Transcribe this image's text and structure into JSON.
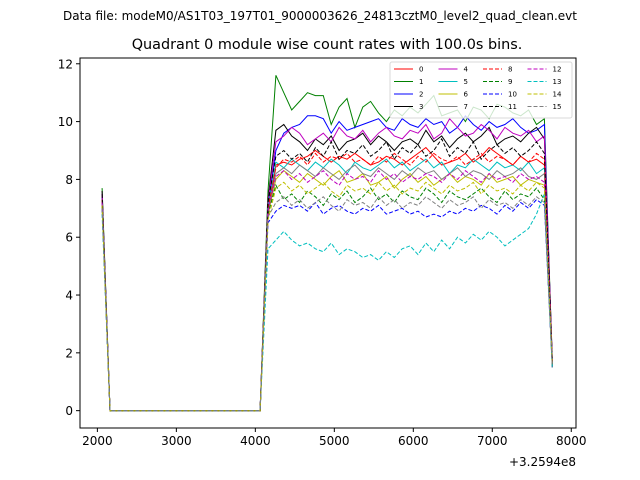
{
  "chart_data": {
    "type": "line",
    "suptitle": "Data file: modeM0/AS1T03_197T01_9000003626_24813cztM0_level2_quad_clean.evt",
    "title": "Quadrant 0 module wise count rates with 100.0s bins.",
    "xlabel": "",
    "ylabel": "",
    "x_offset_label": "+3.2594e8",
    "xlim": [
      1780,
      8060
    ],
    "ylim": [
      -0.6,
      12.2
    ],
    "x_ticks": [
      2000,
      3000,
      4000,
      5000,
      6000,
      7000,
      8000
    ],
    "y_ticks": [
      0,
      2,
      4,
      6,
      8,
      10,
      12
    ],
    "x_tick_labels": [
      "2000",
      "3000",
      "4000",
      "5000",
      "6000",
      "7000",
      "8000"
    ],
    "y_tick_labels": [
      "0",
      "2",
      "4",
      "6",
      "8",
      "10",
      "12"
    ],
    "grid": false,
    "legend_position": "top-right",
    "x": [
      2060,
      2160,
      2260,
      2360,
      2460,
      2560,
      2660,
      2760,
      2860,
      2960,
      3060,
      3160,
      3260,
      3360,
      3460,
      3560,
      3660,
      3760,
      3860,
      3960,
      4060,
      4160,
      4260,
      4360,
      4460,
      4560,
      4660,
      4760,
      4860,
      4960,
      5060,
      5160,
      5260,
      5360,
      5460,
      5560,
      5660,
      5760,
      5860,
      5960,
      6060,
      6160,
      6260,
      6360,
      6460,
      6560,
      6660,
      6760,
      6860,
      6960,
      7060,
      7160,
      7260,
      7360,
      7460,
      7560,
      7660,
      7760
    ],
    "series": [
      {
        "name": "0",
        "color": "#ff0000",
        "dash": "solid",
        "values": [
          7.2,
          0.0,
          0.0,
          0.0,
          0.0,
          0.0,
          0.0,
          0.0,
          0.0,
          0.0,
          0.0,
          0.0,
          0.0,
          0.0,
          0.0,
          0.0,
          0.0,
          0.0,
          0.0,
          0.0,
          0.0,
          6.7,
          8.5,
          8.6,
          8.5,
          8.7,
          8.8,
          9.0,
          8.8,
          8.6,
          8.8,
          8.7,
          8.9,
          8.7,
          8.5,
          8.6,
          8.8,
          8.7,
          8.5,
          8.7,
          8.9,
          9.1,
          8.8,
          8.5,
          8.6,
          8.7,
          8.9,
          8.6,
          8.8,
          9.1,
          8.9,
          8.7,
          8.5,
          8.8,
          8.6,
          8.7,
          8.5,
          1.7
        ]
      },
      {
        "name": "1",
        "color": "#008000",
        "dash": "solid",
        "values": [
          7.7,
          0.0,
          0.0,
          0.0,
          0.0,
          0.0,
          0.0,
          0.0,
          0.0,
          0.0,
          0.0,
          0.0,
          0.0,
          0.0,
          0.0,
          0.0,
          0.0,
          0.0,
          0.0,
          0.0,
          0.0,
          7.6,
          11.6,
          11.0,
          10.4,
          10.7,
          11.0,
          10.9,
          10.9,
          9.9,
          10.5,
          10.8,
          9.8,
          10.5,
          10.7,
          10.3,
          10.0,
          10.4,
          10.2,
          10.5,
          10.3,
          10.6,
          10.9,
          10.2,
          10.3,
          10.4,
          10.0,
          10.5,
          10.4,
          10.1,
          10.6,
          10.5,
          10.3,
          10.2,
          10.4,
          9.9,
          10.1,
          1.6
        ]
      },
      {
        "name": "2",
        "color": "#0000ff",
        "dash": "solid",
        "values": [
          7.4,
          0.0,
          0.0,
          0.0,
          0.0,
          0.0,
          0.0,
          0.0,
          0.0,
          0.0,
          0.0,
          0.0,
          0.0,
          0.0,
          0.0,
          0.0,
          0.0,
          0.0,
          0.0,
          0.0,
          0.0,
          7.1,
          9.0,
          9.6,
          9.8,
          9.9,
          10.2,
          10.2,
          10.1,
          9.6,
          10.0,
          9.7,
          9.8,
          9.9,
          10.0,
          10.1,
          9.8,
          9.7,
          10.1,
          9.9,
          9.8,
          10.1,
          9.9,
          10.0,
          9.6,
          9.8,
          10.2,
          9.9,
          9.7,
          10.0,
          9.8,
          9.9,
          10.1,
          9.8,
          9.6,
          9.7,
          9.9,
          1.5
        ]
      },
      {
        "name": "3",
        "color": "#000000",
        "dash": "solid",
        "values": [
          7.6,
          0.0,
          0.0,
          0.0,
          0.0,
          0.0,
          0.0,
          0.0,
          0.0,
          0.0,
          0.0,
          0.0,
          0.0,
          0.0,
          0.0,
          0.0,
          0.0,
          0.0,
          0.0,
          0.0,
          0.0,
          7.3,
          9.7,
          9.9,
          9.5,
          9.3,
          9.0,
          9.4,
          9.2,
          9.5,
          9.0,
          9.3,
          9.4,
          9.6,
          9.2,
          9.5,
          9.3,
          9.0,
          9.3,
          9.4,
          9.2,
          9.7,
          9.3,
          9.5,
          9.1,
          9.4,
          9.6,
          9.3,
          9.5,
          9.8,
          9.2,
          9.4,
          9.5,
          9.3,
          9.6,
          9.8,
          9.4,
          1.8
        ]
      },
      {
        "name": "4",
        "color": "#bf00bf",
        "dash": "solid",
        "values": [
          7.5,
          0.0,
          0.0,
          0.0,
          0.0,
          0.0,
          0.0,
          0.0,
          0.0,
          0.0,
          0.0,
          0.0,
          0.0,
          0.0,
          0.0,
          0.0,
          0.0,
          0.0,
          0.0,
          0.0,
          0.0,
          7.2,
          9.3,
          9.5,
          9.8,
          9.6,
          9.2,
          9.4,
          9.6,
          9.3,
          9.8,
          9.5,
          9.4,
          9.7,
          9.3,
          9.6,
          9.8,
          9.5,
          9.4,
          9.7,
          9.6,
          9.9,
          9.4,
          9.6,
          10.1,
          9.8,
          9.5,
          9.6,
          9.9,
          9.7,
          9.4,
          9.8,
          9.6,
          9.5,
          9.7,
          9.3,
          9.5,
          1.7
        ]
      },
      {
        "name": "5",
        "color": "#00bfbf",
        "dash": "solid",
        "values": [
          7.3,
          0.0,
          0.0,
          0.0,
          0.0,
          0.0,
          0.0,
          0.0,
          0.0,
          0.0,
          0.0,
          0.0,
          0.0,
          0.0,
          0.0,
          0.0,
          0.0,
          0.0,
          0.0,
          0.0,
          0.0,
          7.0,
          8.6,
          8.4,
          8.7,
          8.5,
          8.3,
          8.6,
          8.4,
          8.7,
          8.5,
          8.2,
          8.6,
          8.4,
          8.3,
          8.5,
          8.7,
          8.4,
          8.6,
          8.3,
          8.5,
          8.7,
          8.4,
          8.6,
          8.2,
          8.5,
          8.4,
          8.7,
          8.5,
          8.3,
          8.6,
          8.4,
          8.5,
          8.3,
          8.6,
          8.2,
          8.4,
          1.6
        ]
      },
      {
        "name": "6",
        "color": "#bfbf00",
        "dash": "solid",
        "values": [
          7.1,
          0.0,
          0.0,
          0.0,
          0.0,
          0.0,
          0.0,
          0.0,
          0.0,
          0.0,
          0.0,
          0.0,
          0.0,
          0.0,
          0.0,
          0.0,
          0.0,
          0.0,
          0.0,
          0.0,
          0.0,
          6.8,
          8.0,
          8.3,
          8.1,
          7.9,
          8.2,
          8.0,
          7.8,
          8.1,
          8.3,
          7.9,
          8.0,
          8.2,
          7.8,
          7.9,
          8.1,
          7.7,
          8.0,
          8.2,
          7.9,
          8.1,
          7.8,
          8.0,
          8.2,
          7.9,
          8.1,
          8.0,
          7.8,
          8.2,
          7.9,
          8.0,
          8.1,
          7.8,
          8.0,
          7.9,
          7.8,
          1.5
        ]
      },
      {
        "name": "7",
        "color": "#808080",
        "dash": "solid",
        "values": [
          7.2,
          0.0,
          0.0,
          0.0,
          0.0,
          0.0,
          0.0,
          0.0,
          0.0,
          0.0,
          0.0,
          0.0,
          0.0,
          0.0,
          0.0,
          0.0,
          0.0,
          0.0,
          0.0,
          0.0,
          0.0,
          6.9,
          8.2,
          8.4,
          8.2,
          8.5,
          8.3,
          8.1,
          8.4,
          8.2,
          8.0,
          8.3,
          8.5,
          8.2,
          8.1,
          8.4,
          8.2,
          8.0,
          8.3,
          8.1,
          8.4,
          8.2,
          8.3,
          8.0,
          8.2,
          8.4,
          8.1,
          8.3,
          8.2,
          8.0,
          8.3,
          8.1,
          8.2,
          8.4,
          8.1,
          8.0,
          8.2,
          1.6
        ]
      },
      {
        "name": "8",
        "color": "#ff0000",
        "dash": "dashed",
        "values": [
          7.3,
          0.0,
          0.0,
          0.0,
          0.0,
          0.0,
          0.0,
          0.0,
          0.0,
          0.0,
          0.0,
          0.0,
          0.0,
          0.0,
          0.0,
          0.0,
          0.0,
          0.0,
          0.0,
          0.0,
          0.0,
          7.0,
          8.4,
          8.7,
          8.6,
          8.8,
          8.5,
          8.9,
          8.6,
          8.8,
          8.7,
          8.9,
          8.6,
          8.7,
          8.5,
          8.8,
          8.6,
          8.9,
          8.7,
          8.5,
          8.8,
          8.6,
          8.9,
          8.7,
          8.6,
          8.8,
          8.5,
          8.7,
          8.9,
          8.6,
          8.8,
          8.7,
          8.5,
          8.8,
          8.6,
          8.9,
          8.7,
          1.7
        ]
      },
      {
        "name": "9",
        "color": "#008000",
        "dash": "dashed",
        "values": [
          7.1,
          0.0,
          0.0,
          0.0,
          0.0,
          0.0,
          0.0,
          0.0,
          0.0,
          0.0,
          0.0,
          0.0,
          0.0,
          0.0,
          0.0,
          0.0,
          0.0,
          0.0,
          0.0,
          0.0,
          0.0,
          6.8,
          7.8,
          7.3,
          7.5,
          7.2,
          7.6,
          7.4,
          7.1,
          7.5,
          7.3,
          7.6,
          7.2,
          7.4,
          7.7,
          7.3,
          7.5,
          7.2,
          7.6,
          7.4,
          7.3,
          7.7,
          7.5,
          7.2,
          7.6,
          7.4,
          7.3,
          7.5,
          7.7,
          7.4,
          7.2,
          7.6,
          7.3,
          7.5,
          7.4,
          7.7,
          7.3,
          1.5
        ]
      },
      {
        "name": "10",
        "color": "#0000ff",
        "dash": "dashed",
        "values": [
          7.0,
          0.0,
          0.0,
          0.0,
          0.0,
          0.0,
          0.0,
          0.0,
          0.0,
          0.0,
          0.0,
          0.0,
          0.0,
          0.0,
          0.0,
          0.0,
          0.0,
          0.0,
          0.0,
          0.0,
          0.0,
          6.5,
          6.9,
          7.1,
          7.0,
          7.1,
          6.9,
          7.2,
          6.8,
          7.0,
          7.1,
          6.9,
          6.8,
          7.0,
          6.9,
          7.1,
          6.8,
          6.9,
          7.0,
          6.8,
          6.9,
          6.7,
          6.8,
          6.7,
          6.9,
          6.8,
          7.0,
          6.9,
          7.1,
          7.0,
          6.8,
          7.1,
          6.9,
          7.2,
          7.0,
          7.3,
          7.1,
          1.5
        ]
      },
      {
        "name": "11",
        "color": "#000000",
        "dash": "dashed",
        "values": [
          7.5,
          0.0,
          0.0,
          0.0,
          0.0,
          0.0,
          0.0,
          0.0,
          0.0,
          0.0,
          0.0,
          0.0,
          0.0,
          0.0,
          0.0,
          0.0,
          0.0,
          0.0,
          0.0,
          0.0,
          0.0,
          7.2,
          8.8,
          9.0,
          8.7,
          8.9,
          8.6,
          9.1,
          8.8,
          9.3,
          8.7,
          9.0,
          8.9,
          9.2,
          8.8,
          9.0,
          9.3,
          8.7,
          9.1,
          8.9,
          9.2,
          8.8,
          9.0,
          9.4,
          8.8,
          9.1,
          8.9,
          9.3,
          8.7,
          9.0,
          9.2,
          8.9,
          9.1,
          8.8,
          9.0,
          9.3,
          8.9,
          1.7
        ]
      },
      {
        "name": "12",
        "color": "#bf00bf",
        "dash": "dashed",
        "values": [
          7.2,
          0.0,
          0.0,
          0.0,
          0.0,
          0.0,
          0.0,
          0.0,
          0.0,
          0.0,
          0.0,
          0.0,
          0.0,
          0.0,
          0.0,
          0.0,
          0.0,
          0.0,
          0.0,
          0.0,
          0.0,
          6.9,
          8.1,
          8.3,
          8.0,
          8.2,
          7.9,
          8.1,
          8.3,
          8.0,
          7.8,
          8.2,
          8.0,
          8.1,
          7.9,
          8.3,
          8.0,
          8.2,
          7.9,
          8.1,
          8.0,
          8.2,
          8.1,
          7.9,
          8.2,
          8.0,
          8.3,
          8.1,
          7.9,
          8.2,
          8.0,
          8.1,
          7.9,
          8.2,
          8.0,
          8.1,
          7.9,
          1.6
        ]
      },
      {
        "name": "13",
        "color": "#00bfbf",
        "dash": "dashed",
        "values": [
          6.8,
          0.0,
          0.0,
          0.0,
          0.0,
          0.0,
          0.0,
          0.0,
          0.0,
          0.0,
          0.0,
          0.0,
          0.0,
          0.0,
          0.0,
          0.0,
          0.0,
          0.0,
          0.0,
          0.0,
          0.0,
          5.6,
          5.9,
          6.2,
          5.9,
          5.7,
          5.8,
          5.6,
          5.5,
          5.8,
          5.4,
          5.6,
          5.5,
          5.3,
          5.4,
          5.2,
          5.5,
          5.3,
          5.6,
          5.7,
          5.4,
          5.8,
          5.5,
          5.9,
          5.6,
          6.0,
          5.8,
          6.1,
          5.9,
          6.2,
          6.0,
          5.7,
          5.9,
          6.1,
          6.3,
          6.8,
          7.5,
          1.5
        ]
      },
      {
        "name": "14",
        "color": "#bfbf00",
        "dash": "dashed",
        "values": [
          7.1,
          0.0,
          0.0,
          0.0,
          0.0,
          0.0,
          0.0,
          0.0,
          0.0,
          0.0,
          0.0,
          0.0,
          0.0,
          0.0,
          0.0,
          0.0,
          0.0,
          0.0,
          0.0,
          0.0,
          0.0,
          6.6,
          7.7,
          7.9,
          7.6,
          7.8,
          7.5,
          7.7,
          7.9,
          7.6,
          7.4,
          7.8,
          7.6,
          7.7,
          7.5,
          7.9,
          7.6,
          7.8,
          7.5,
          7.7,
          7.6,
          7.9,
          7.7,
          7.5,
          7.8,
          7.6,
          7.7,
          7.9,
          7.5,
          7.8,
          7.6,
          7.7,
          7.5,
          7.8,
          7.6,
          7.9,
          7.7,
          1.6
        ]
      },
      {
        "name": "15",
        "color": "#808080",
        "dash": "dashed",
        "values": [
          7.0,
          0.0,
          0.0,
          0.0,
          0.0,
          0.0,
          0.0,
          0.0,
          0.0,
          0.0,
          0.0,
          0.0,
          0.0,
          0.0,
          0.0,
          0.0,
          0.0,
          0.0,
          0.0,
          0.0,
          0.0,
          6.7,
          7.2,
          7.4,
          7.1,
          7.3,
          7.0,
          7.2,
          7.4,
          7.1,
          6.9,
          7.3,
          7.1,
          7.2,
          7.0,
          7.4,
          7.1,
          7.3,
          7.0,
          7.2,
          7.1,
          7.4,
          7.2,
          7.0,
          7.3,
          7.1,
          7.2,
          7.4,
          7.0,
          7.3,
          7.1,
          7.2,
          7.0,
          7.3,
          7.1,
          7.4,
          7.2,
          1.5
        ]
      }
    ]
  }
}
